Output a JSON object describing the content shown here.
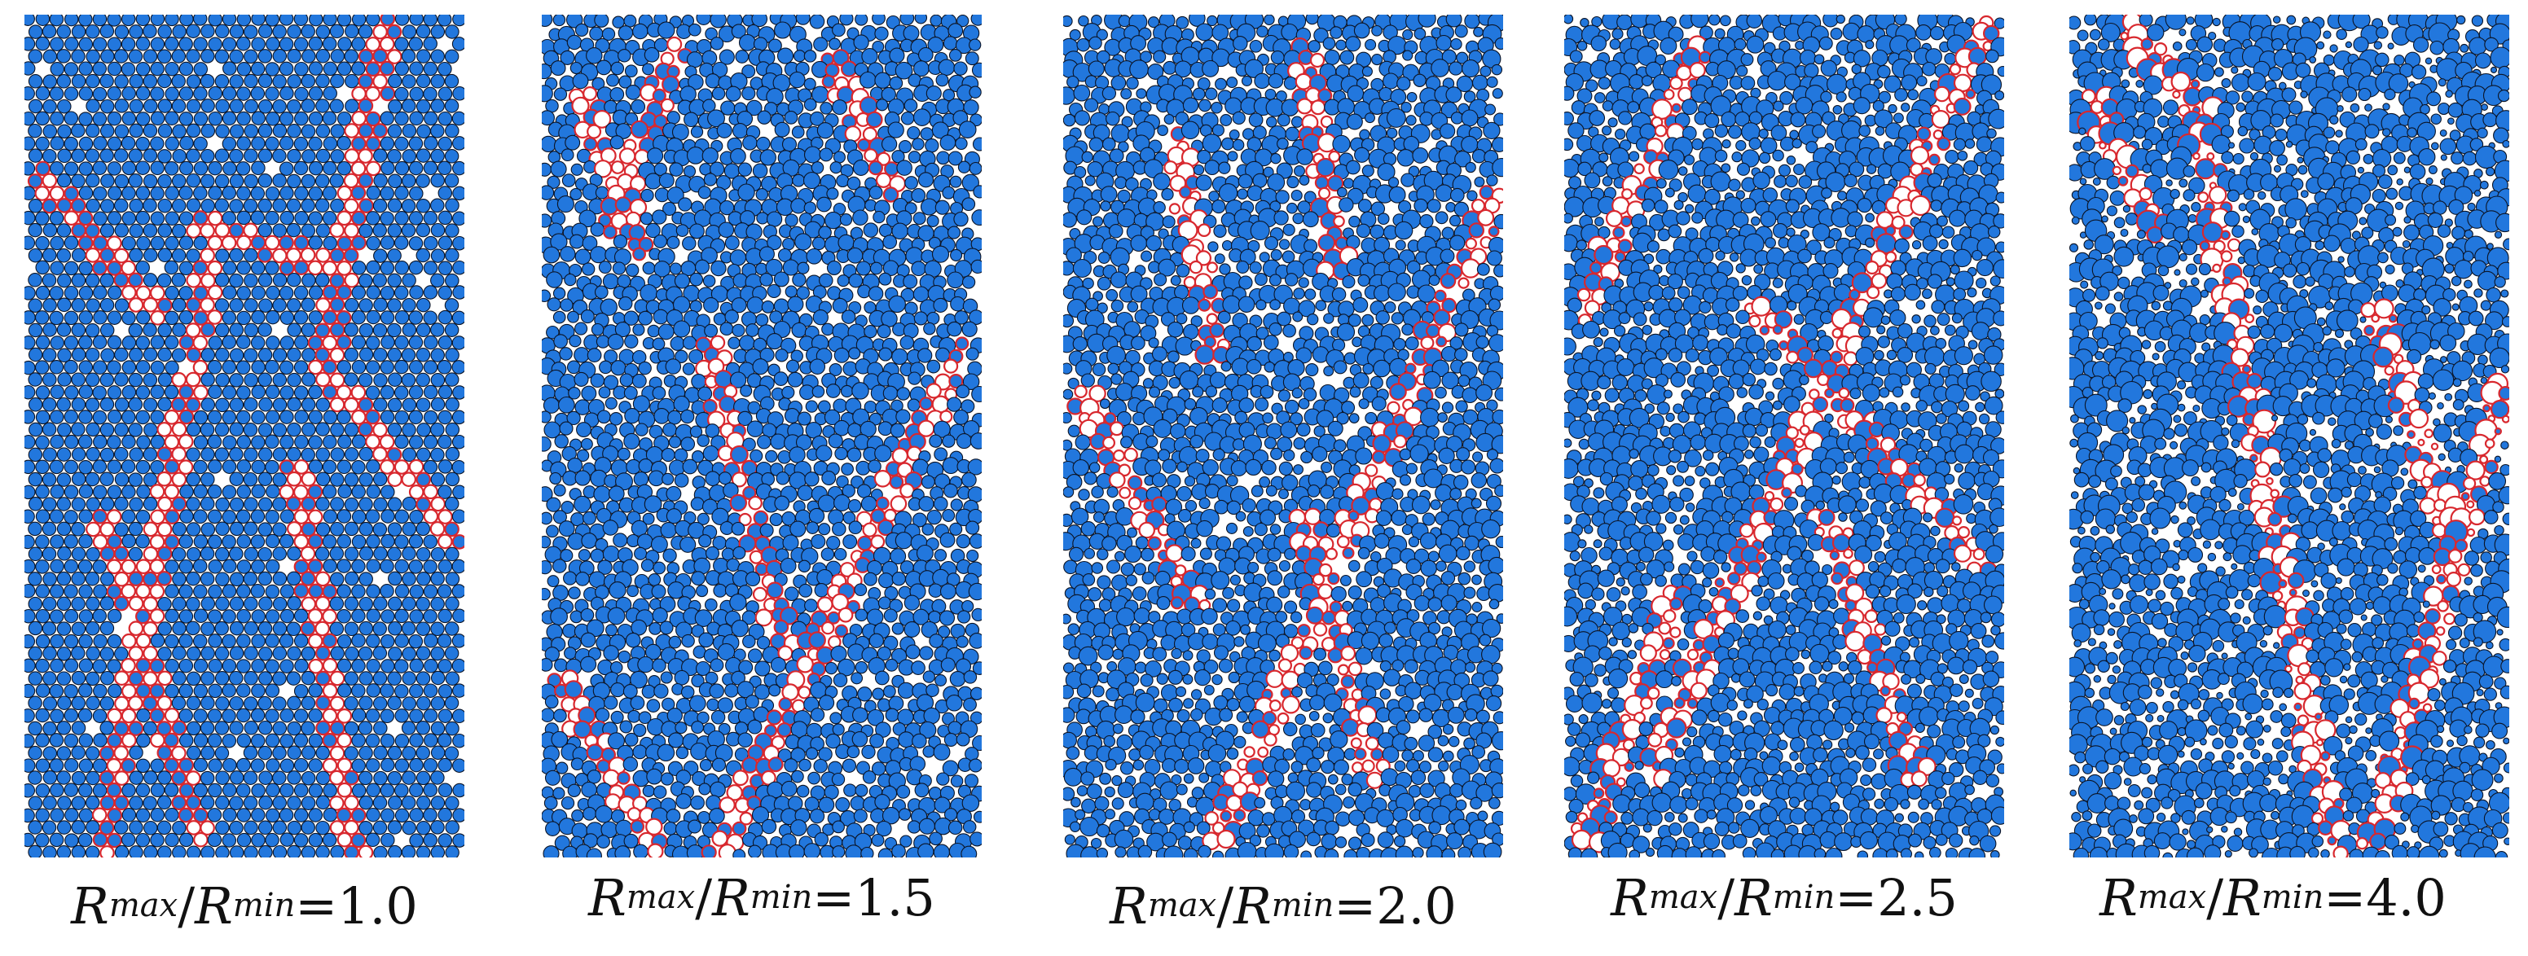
{
  "figure": {
    "colors": {
      "particle": "#2277dd",
      "particle_stroke": "#0b1426",
      "shear_band": "#d8282e",
      "void": "#ffffff"
    },
    "panels": [
      {
        "label_R": "R",
        "max": "max",
        "slash": "/",
        "min": "min",
        "eq": "=",
        "ratio": "1.0",
        "ratio_value": 1.0,
        "seed": 11,
        "bands": [
          [
            0.04,
            0.2,
            0.3,
            0.35
          ],
          [
            0.82,
            0.02,
            0.68,
            0.42
          ],
          [
            0.68,
            0.42,
            0.98,
            0.62
          ],
          [
            0.42,
            0.3,
            0.18,
            0.98
          ],
          [
            0.18,
            0.6,
            0.4,
            0.98
          ],
          [
            0.62,
            0.55,
            0.75,
            1.0
          ],
          [
            0.4,
            0.25,
            0.7,
            0.3
          ]
        ]
      },
      {
        "label_R": "R",
        "max": "max",
        "slash": "/",
        "min": "min",
        "eq": "=",
        "ratio": "1.5",
        "ratio_value": 1.5,
        "seed": 23,
        "bands": [
          [
            0.1,
            0.1,
            0.22,
            0.28
          ],
          [
            0.3,
            0.05,
            0.16,
            0.25
          ],
          [
            0.95,
            0.4,
            0.4,
            1.0
          ],
          [
            0.38,
            0.4,
            0.55,
            0.75
          ],
          [
            0.05,
            0.8,
            0.25,
            0.98
          ],
          [
            0.65,
            0.05,
            0.8,
            0.2
          ]
        ]
      },
      {
        "label_R": "R",
        "max": "max",
        "slash": "/",
        "min": "min",
        "eq": "=",
        "ratio": "2.0",
        "ratio_value": 2.0,
        "seed": 37,
        "bands": [
          [
            0.98,
            0.22,
            0.35,
            0.98
          ],
          [
            0.05,
            0.45,
            0.3,
            0.7
          ],
          [
            0.55,
            0.05,
            0.62,
            0.3
          ],
          [
            0.25,
            0.15,
            0.35,
            0.4
          ],
          [
            0.55,
            0.6,
            0.7,
            0.9
          ]
        ]
      },
      {
        "label_R": "R",
        "max": "max",
        "slash": "/",
        "min": "min",
        "eq": "=",
        "ratio": "2.5",
        "ratio_value": 2.5,
        "seed": 53,
        "bands": [
          [
            0.95,
            0.02,
            0.2,
            0.9
          ],
          [
            0.3,
            0.05,
            0.05,
            0.35
          ],
          [
            0.45,
            0.35,
            0.95,
            0.65
          ],
          [
            0.25,
            0.7,
            0.05,
            0.98
          ],
          [
            0.6,
            0.6,
            0.8,
            0.9
          ]
        ]
      },
      {
        "label_R": "R",
        "max": "max",
        "slash": "/",
        "min": "min",
        "eq": "=",
        "ratio": "4.0",
        "ratio_value": 4.0,
        "seed": 71,
        "bands": [
          [
            0.05,
            0.1,
            0.2,
            0.25
          ],
          [
            0.3,
            0.15,
            0.6,
            0.98
          ],
          [
            0.98,
            0.45,
            0.7,
            0.98
          ],
          [
            0.7,
            0.35,
            0.85,
            0.6
          ],
          [
            0.15,
            0.02,
            0.3,
            0.12
          ]
        ]
      }
    ]
  }
}
